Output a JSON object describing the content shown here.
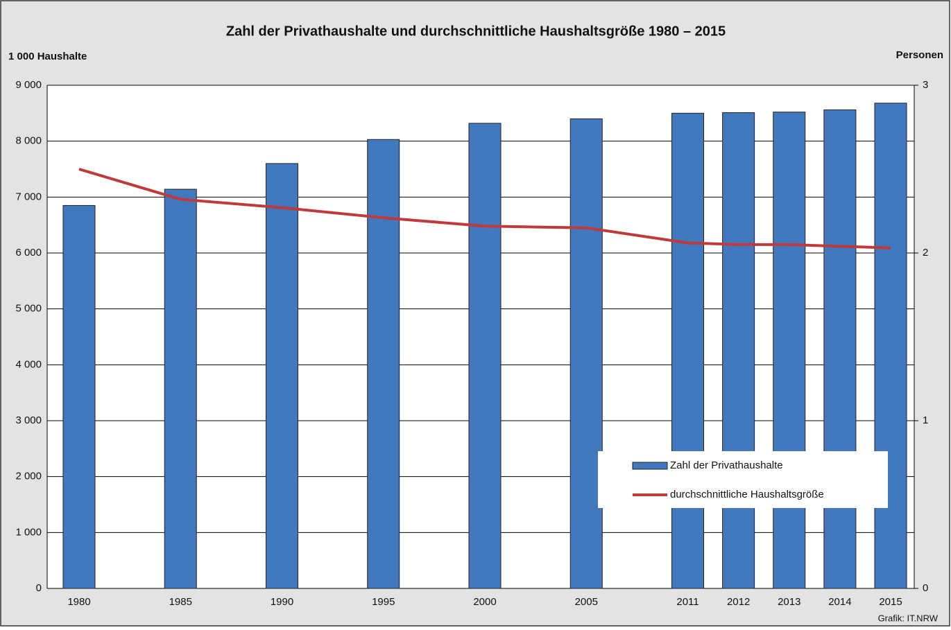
{
  "chart_data": {
    "type": "bar",
    "title": "Zahl der Privathaushalte und durchschnittliche Haushaltsgröße 1980 – 2015",
    "y_label": "1 000 Haushalte",
    "y2_label": "Personen",
    "source": "Grafik: IT.NRW",
    "categories": [
      "1980",
      "1985",
      "1990",
      "1995",
      "2000",
      "2005",
      "2011",
      "2012",
      "2013",
      "2014",
      "2015"
    ],
    "series": [
      {
        "name": "Zahl der Privathaushalte",
        "type": "bar",
        "color": "#4178be",
        "values": [
          6850,
          7140,
          7600,
          8030,
          8320,
          8400,
          8500,
          8510,
          8520,
          8560,
          8680
        ]
      },
      {
        "name": "durchschnittliche Haushaltsgröße",
        "type": "line",
        "axis": "y2",
        "color": "#c0393b",
        "values": [
          2.5,
          2.32,
          2.27,
          2.21,
          2.16,
          2.15,
          2.06,
          2.05,
          2.05,
          2.04,
          2.03
        ]
      }
    ],
    "ylim": [
      0,
      9000
    ],
    "yticks": [
      0,
      {
        "value": 1000,
        "label": "1 000"
      },
      {
        "value": 2000,
        "label": "2 000"
      },
      {
        "value": 3000,
        "label": "3 000"
      },
      {
        "value": 4000,
        "label": "4 000"
      },
      {
        "value": 5000,
        "label": "5 000"
      },
      {
        "value": 6000,
        "label": "6 000"
      },
      {
        "value": 7000,
        "label": "7 000"
      },
      {
        "value": 8000,
        "label": "8 000"
      },
      {
        "value": 9000,
        "label": "9 000"
      }
    ],
    "y2lim": [
      0,
      3
    ],
    "y2ticks": [
      0,
      1,
      2,
      3
    ],
    "grid": true,
    "legend": "lower right"
  }
}
